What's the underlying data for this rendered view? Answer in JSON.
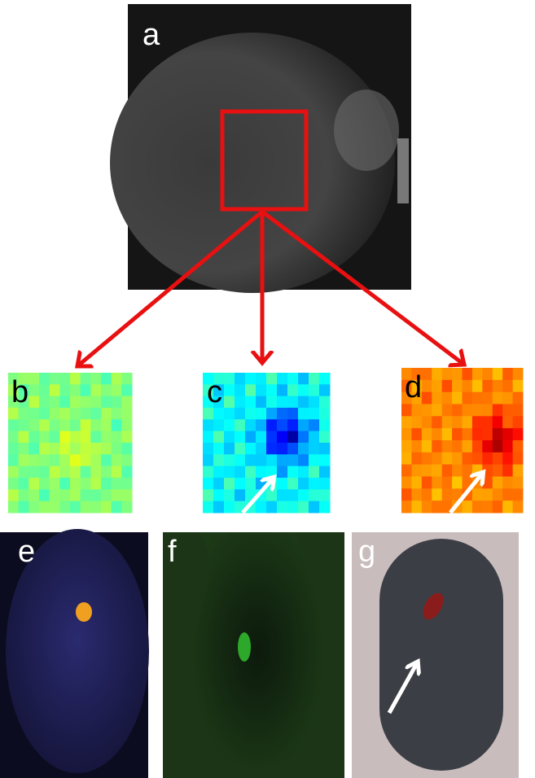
{
  "panels": [
    {
      "label": "a"
    },
    {
      "label": "b"
    },
    {
      "label": "c"
    },
    {
      "label": "d"
    },
    {
      "label": "e"
    },
    {
      "label": "f"
    },
    {
      "label": "g"
    }
  ]
}
